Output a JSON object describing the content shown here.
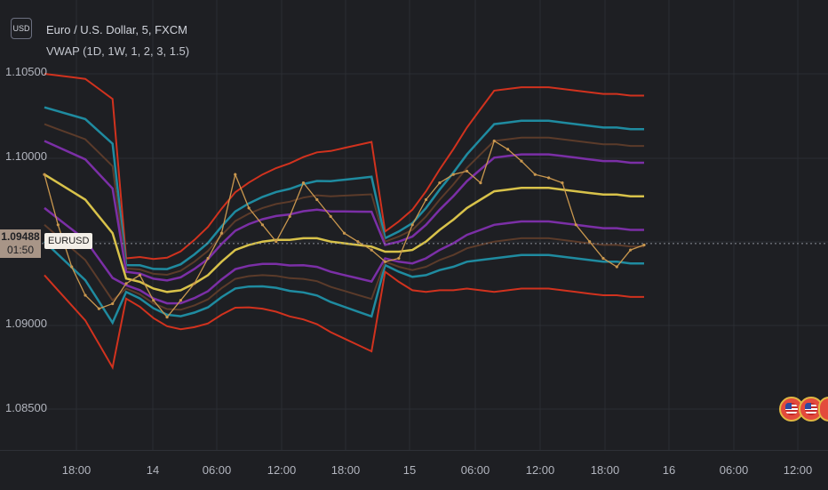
{
  "currency_badge": "USD",
  "legend": {
    "title": "Euro / U.S. Dollar, 5, FXCM",
    "indicator": "VWAP (1D, 1W, 1, 2, 3, 1.5)"
  },
  "price_axis": {
    "labels": [
      "1.10500",
      "1.10000",
      "1.09000",
      "1.08500"
    ],
    "current_price": "1.09488",
    "countdown": "01:50",
    "symbol": "EURUSD"
  },
  "time_axis": {
    "labels": [
      "18:00",
      "14",
      "06:00",
      "12:00",
      "18:00",
      "15",
      "06:00",
      "12:00",
      "18:00",
      "16",
      "06:00",
      "12:00"
    ]
  },
  "colors": {
    "background": "#1e1f23",
    "band_outer": "#d1321e",
    "band_3": "#1f8ba0",
    "band_2": "#5b3b2a",
    "band_1": "#7b2fa6",
    "vwap": "#d8c24a",
    "price_line": "#c9974e",
    "current_price_tag": "#a89587"
  },
  "event_icons": [
    "us-flag-icon",
    "us-flag-icon",
    "us-flag-icon"
  ],
  "chart_data": {
    "type": "line",
    "title": "Euro / U.S. Dollar, 5, FXCM",
    "indicator": "VWAP (1D, 1W, 1, 2, 3, 1.5)",
    "ylim": [
      1.0825,
      1.1075
    ],
    "ticks_y": [
      1.085,
      1.09,
      1.1,
      1.105
    ],
    "x": [
      "13 16:00",
      "13 17:00",
      "13 18:00",
      "13 19:00",
      "13 20:00",
      "13 21:00",
      "14 00:00",
      "14 02:00",
      "14 04:00",
      "14 06:00",
      "14 07:00",
      "14 08:00",
      "14 09:00",
      "14 10:00",
      "14 11:00",
      "14 12:00",
      "14 13:00",
      "14 14:00",
      "14 15:00",
      "14 16:00",
      "14 17:00",
      "14 18:00",
      "14 19:00",
      "14 20:00",
      "14 22:00",
      "15 00:00",
      "15 02:00",
      "15 03:00",
      "15 04:00",
      "15 05:00",
      "15 06:00",
      "15 07:00",
      "15 08:00",
      "15 09:00",
      "15 10:00",
      "15 11:00",
      "15 12:00",
      "15 13:00",
      "15 14:00",
      "15 15:00",
      "15 16:00",
      "15 17:00",
      "15 18:00",
      "15 19:00",
      "15 20:00"
    ],
    "series": [
      {
        "name": "Price",
        "values": [
          1.099,
          1.096,
          1.0935,
          1.0918,
          1.091,
          1.0913,
          1.0925,
          1.093,
          1.0915,
          1.0905,
          1.0915,
          1.0925,
          1.094,
          1.0955,
          1.099,
          1.097,
          1.096,
          1.095,
          1.0965,
          1.0985,
          1.0975,
          1.0965,
          1.0955,
          1.095,
          1.0945,
          1.0938,
          1.094,
          1.096,
          1.0975,
          1.0985,
          1.099,
          1.0992,
          1.0985,
          1.101,
          1.1005,
          1.0998,
          1.099,
          1.0988,
          1.0985,
          1.096,
          1.095,
          1.094,
          1.0935,
          1.0945,
          1.0948
        ]
      },
      {
        "name": "VWAP",
        "values": [
          1.099,
          1.0985,
          1.098,
          1.0975,
          1.0965,
          1.0955,
          1.0928,
          1.0926,
          1.0922,
          1.092,
          1.0921,
          1.0925,
          1.093,
          1.0938,
          1.0945,
          1.0948,
          1.095,
          1.0951,
          1.0951,
          1.0952,
          1.0952,
          1.095,
          1.0949,
          1.0948,
          1.0947,
          1.0944,
          1.0944,
          1.0945,
          1.095,
          1.0957,
          1.0963,
          1.097,
          1.0975,
          1.098,
          1.0981,
          1.0982,
          1.0982,
          1.0982,
          1.0981,
          1.098,
          1.0979,
          1.0978,
          1.0978,
          1.0977,
          1.0977
        ]
      }
    ]
  }
}
